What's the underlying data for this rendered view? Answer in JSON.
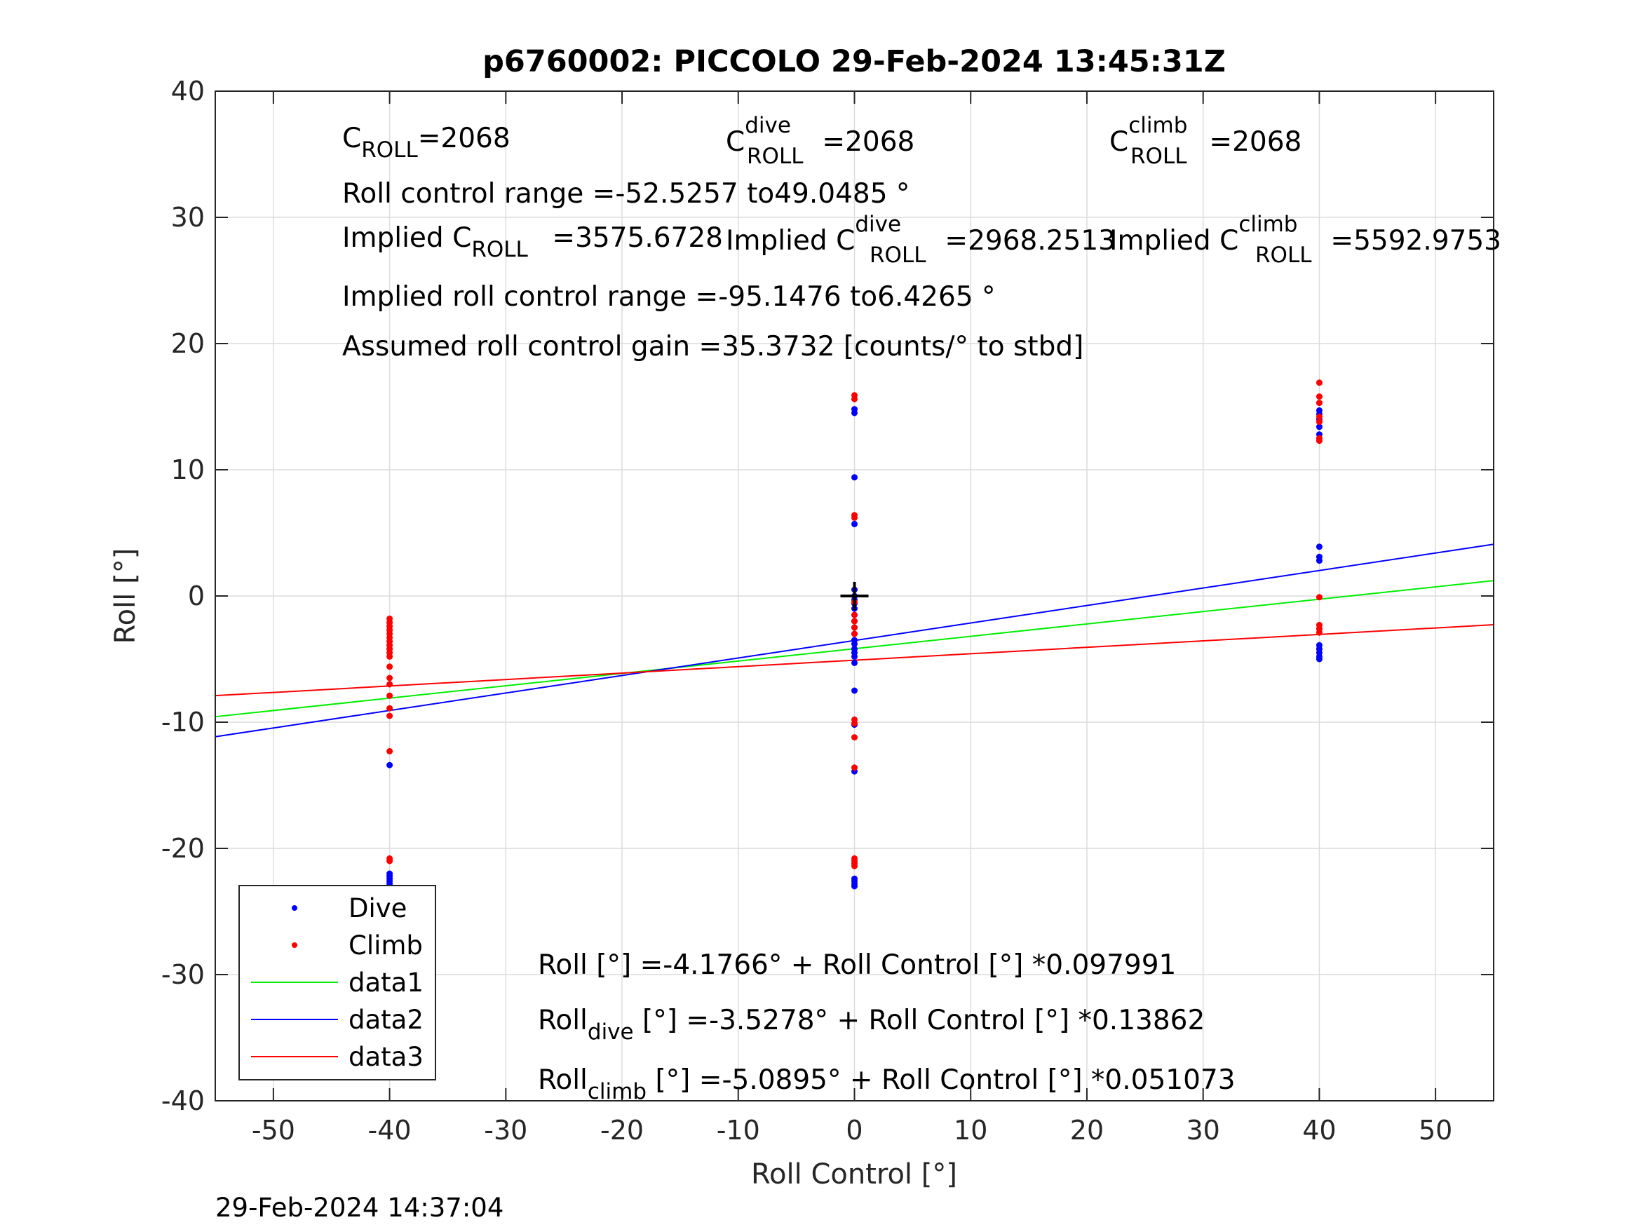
{
  "chart_data": {
    "type": "scatter",
    "title": "p6760002: PICCOLO 29-Feb-2024 13:45:31Z",
    "xlabel": "Roll Control [°]",
    "ylabel": "Roll [°]",
    "xlim": [
      -55,
      55
    ],
    "ylim": [
      -40,
      40
    ],
    "xticks": [
      -50,
      -40,
      -30,
      -20,
      -10,
      0,
      10,
      20,
      30,
      40,
      50
    ],
    "yticks": [
      -40,
      -30,
      -20,
      -10,
      0,
      10,
      20,
      30,
      40
    ],
    "grid": true,
    "timestamp": "29-Feb-2024 14:37:04",
    "colors": {
      "dive": "#0000ff",
      "climb": "#ff0000",
      "data1": "#00ee00",
      "data2": "#0000ff",
      "data3": "#ff0000"
    },
    "legend": {
      "placement": "bottom-left",
      "entries": [
        {
          "label": "Dive",
          "kind": "marker",
          "series": "dive"
        },
        {
          "label": "Climb",
          "kind": "marker",
          "series": "climb"
        },
        {
          "label": "data1",
          "kind": "line",
          "series": "data1"
        },
        {
          "label": "data2",
          "kind": "line",
          "series": "data2"
        },
        {
          "label": "data3",
          "kind": "line",
          "series": "data3"
        }
      ]
    },
    "series": [
      {
        "name": "Dive",
        "kind": "points",
        "key": "dive",
        "points": [
          [
            -40,
            -13.4
          ],
          [
            -40,
            -22.0
          ],
          [
            -40,
            -22.2
          ],
          [
            -40,
            -22.4
          ],
          [
            -40,
            -22.6
          ],
          [
            -40,
            -22.8
          ],
          [
            0,
            14.5
          ],
          [
            0,
            14.8
          ],
          [
            0,
            9.4
          ],
          [
            0,
            5.7
          ],
          [
            0,
            0.5
          ],
          [
            0,
            0.0
          ],
          [
            0,
            -0.3
          ],
          [
            0,
            -0.6
          ],
          [
            0,
            -1.0
          ],
          [
            0,
            -1.5
          ],
          [
            0,
            -2.0
          ],
          [
            0,
            -2.5
          ],
          [
            0,
            -3.0
          ],
          [
            0,
            -3.5
          ],
          [
            0,
            -3.8
          ],
          [
            0,
            -4.2
          ],
          [
            0,
            -4.5
          ],
          [
            0,
            -4.8
          ],
          [
            0,
            -5.3
          ],
          [
            0,
            -7.5
          ],
          [
            0,
            -10.2
          ],
          [
            0,
            -13.9
          ],
          [
            0,
            -22.4
          ],
          [
            0,
            -22.6
          ],
          [
            0,
            -22.8
          ],
          [
            0,
            -23.0
          ],
          [
            40,
            14.7
          ],
          [
            40,
            14.4
          ],
          [
            40,
            14.0
          ],
          [
            40,
            13.4
          ],
          [
            40,
            12.8
          ],
          [
            40,
            3.9
          ],
          [
            40,
            3.1
          ],
          [
            40,
            2.8
          ],
          [
            40,
            -3.9
          ],
          [
            40,
            -4.2
          ],
          [
            40,
            -4.5
          ],
          [
            40,
            -4.8
          ],
          [
            40,
            -5.0
          ]
        ]
      },
      {
        "name": "Climb",
        "kind": "points",
        "key": "climb",
        "points": [
          [
            -40,
            -1.8
          ],
          [
            -40,
            -2.1
          ],
          [
            -40,
            -2.4
          ],
          [
            -40,
            -2.7
          ],
          [
            -40,
            -3.0
          ],
          [
            -40,
            -3.3
          ],
          [
            -40,
            -3.6
          ],
          [
            -40,
            -3.9
          ],
          [
            -40,
            -4.2
          ],
          [
            -40,
            -4.5
          ],
          [
            -40,
            -4.8
          ],
          [
            -40,
            -5.6
          ],
          [
            -40,
            -6.5
          ],
          [
            -40,
            -7.0
          ],
          [
            -40,
            -7.9
          ],
          [
            -40,
            -8.9
          ],
          [
            -40,
            -9.5
          ],
          [
            -40,
            -12.3
          ],
          [
            -40,
            -20.8
          ],
          [
            -40,
            -21.0
          ],
          [
            0,
            15.9
          ],
          [
            0,
            15.6
          ],
          [
            0,
            6.4
          ],
          [
            0,
            6.2
          ],
          [
            0,
            -0.5
          ],
          [
            0,
            -1.5
          ],
          [
            0,
            -2.0
          ],
          [
            0,
            -2.5
          ],
          [
            0,
            -3.0
          ],
          [
            0,
            -9.8
          ],
          [
            0,
            -10.1
          ],
          [
            0,
            -11.2
          ],
          [
            0,
            -13.6
          ],
          [
            0,
            -20.8
          ],
          [
            0,
            -21.0
          ],
          [
            0,
            -21.2
          ],
          [
            0,
            -21.4
          ],
          [
            40,
            16.9
          ],
          [
            40,
            15.8
          ],
          [
            40,
            15.3
          ],
          [
            40,
            14.2
          ],
          [
            40,
            13.8
          ],
          [
            40,
            12.5
          ],
          [
            40,
            12.3
          ],
          [
            40,
            -0.1
          ],
          [
            40,
            -2.3
          ],
          [
            40,
            -2.6
          ],
          [
            40,
            -2.9
          ]
        ]
      },
      {
        "name": "data1",
        "kind": "line",
        "key": "data1",
        "intercept": -4.1766,
        "slope": 0.097991
      },
      {
        "name": "data2",
        "kind": "line",
        "key": "data2",
        "intercept": -3.5278,
        "slope": 0.13862
      },
      {
        "name": "data3",
        "kind": "line",
        "key": "data3",
        "intercept": -5.0895,
        "slope": 0.051073
      }
    ],
    "center_marker": {
      "x": 0,
      "y": 0,
      "symbol": "+"
    },
    "annotations": {
      "c_roll": {
        "pre": "C",
        "sub": "ROLL",
        "post": "=2068"
      },
      "c_roll_dive": {
        "pre": "C",
        "sup": "dive",
        "sub": "ROLL",
        "post": " =2068"
      },
      "c_roll_climb": {
        "pre": "C",
        "sup": "climb",
        "sub": "ROLL",
        "post": " =2068"
      },
      "range": "Roll control range =-52.5257 to49.0485 °",
      "implied_c_roll": {
        "pre": "Implied C",
        "sub": "ROLL",
        "post": " =3575.6728"
      },
      "implied_c_roll_dive": {
        "pre": "Implied C",
        "sup": "dive",
        "sub": "ROLL",
        "post": " =2968.2513"
      },
      "implied_c_roll_climb": {
        "pre": "Implied C",
        "sup": "climb",
        "sub": "ROLL",
        "post": " =5592.9753"
      },
      "implied_range": "Implied roll control range =-95.1476 to6.4265 °",
      "gain": "Assumed roll control gain =35.3732 [counts/° to stbd]",
      "fit_all": "Roll [°] =-4.1766° + Roll Control [°] *0.097991",
      "fit_dive": {
        "pre": "Roll",
        "sub": "dive",
        "post": " [°] =-3.5278° + Roll Control [°] *0.13862"
      },
      "fit_climb": {
        "pre": "Roll",
        "sub": "climb",
        "post": " [°] =-5.0895° + Roll Control [°] *0.051073"
      }
    }
  }
}
